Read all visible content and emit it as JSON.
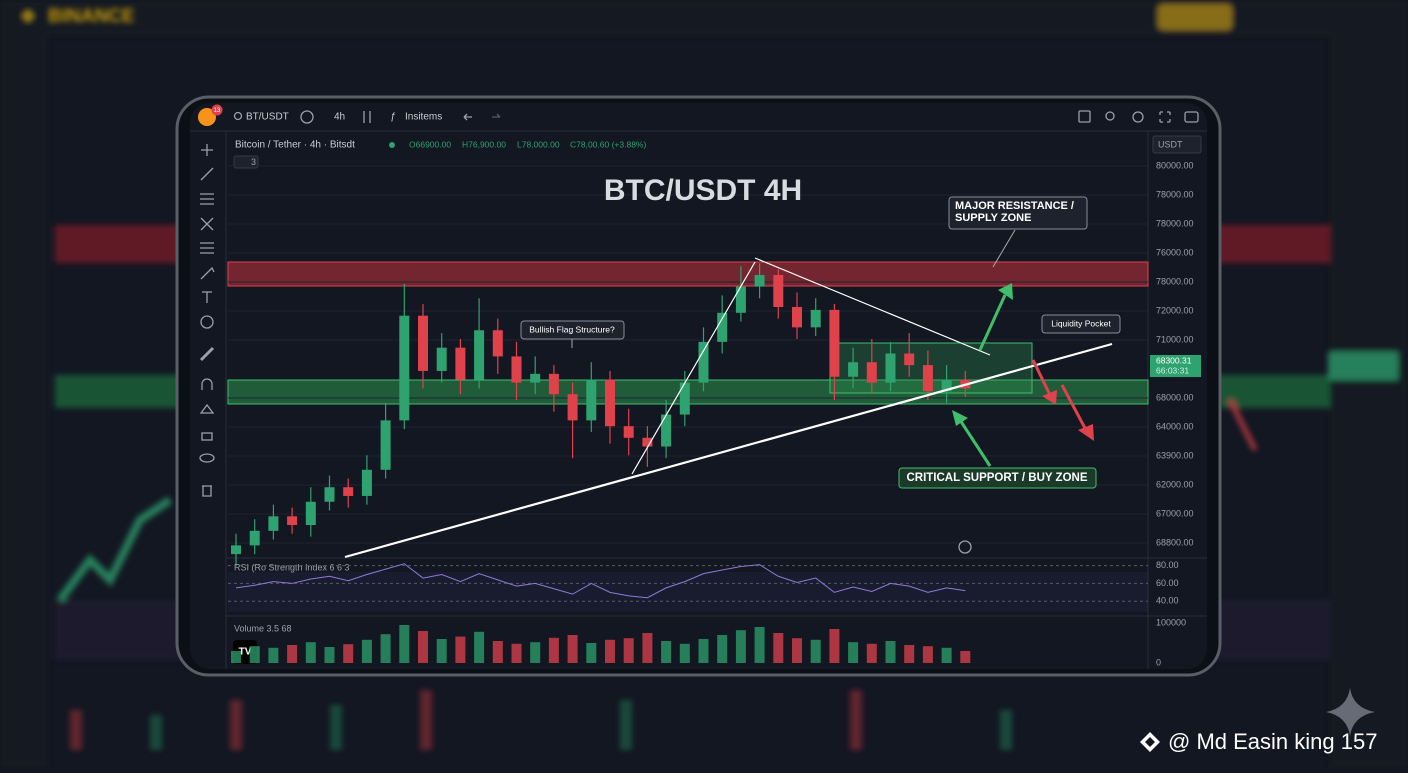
{
  "app": {
    "brand": "BINANCE",
    "symbol": "BT/USDT",
    "badge": "13",
    "interval": "4h",
    "indicators_button": "Insitems",
    "currency": "USDT",
    "legend": "Bitcoin / Tether · 4h · Bitsdt",
    "ohlc": [
      "O66900.00",
      "H76,900.00",
      "L78,000.00",
      "C78,00.60 (+3.88%)"
    ],
    "indicator_count": "3",
    "price_axis_labels": [
      "80000.00",
      "78000.00",
      "78000.00",
      "76000.00",
      "78000.00",
      "72000.00",
      "71000.00",
      "68000.00",
      "64000.00",
      "63900.00",
      "62000.00",
      "67000.00",
      "68800.00"
    ],
    "price_tag": [
      "68300.31",
      "66:03:31"
    ],
    "tv_logo": "TV",
    "watermark": "@ Md Easin king 157"
  },
  "chart_data": {
    "type": "candlestick",
    "title": "BTC/USDT 4H",
    "annotations": [
      "MAJOR RESISTANCE / SUPPLY ZONE",
      "Bullish Flag Structure?",
      "Liquidity Pocket",
      "CRITICAL SUPPORT / BUY ZONE"
    ],
    "ylim": [
      66500,
      80500
    ],
    "up_color": "#2ea36f",
    "down_color": "#e0424c",
    "open": [
      66600,
      66900,
      67400,
      67900,
      67600,
      68400,
      68900,
      68600,
      69500,
      71200,
      74800,
      72900,
      73700,
      72600,
      74300,
      73400,
      72500,
      72800,
      72100,
      71200,
      72600,
      71000,
      70600,
      70300,
      71400,
      72500,
      73900,
      74900,
      75800,
      76200,
      75100,
      74400,
      75000,
      72700,
      73200,
      72500,
      73500,
      73100,
      72200,
      72600
    ],
    "high": [
      67300,
      67800,
      68300,
      68200,
      68900,
      69300,
      69200,
      70000,
      71800,
      75900,
      75200,
      74200,
      74000,
      75400,
      74700,
      73900,
      73400,
      73100,
      72500,
      73200,
      72900,
      71600,
      71000,
      71900,
      72900,
      74400,
      75500,
      76500,
      76600,
      76400,
      75600,
      75400,
      75200,
      73700,
      74000,
      73900,
      74200,
      73600,
      73100,
      72900
    ],
    "low": [
      66200,
      66600,
      67100,
      67300,
      67200,
      68100,
      68200,
      68300,
      69200,
      70900,
      72300,
      72500,
      72100,
      72300,
      72800,
      71900,
      72100,
      71500,
      69900,
      70800,
      70400,
      70000,
      69600,
      69900,
      71000,
      72200,
      73500,
      74600,
      75400,
      74700,
      74000,
      74100,
      71900,
      72300,
      72100,
      72200,
      72700,
      71900,
      71800,
      72000
    ],
    "close": [
      66900,
      67400,
      67900,
      67600,
      68400,
      68900,
      68600,
      69500,
      71200,
      74800,
      72900,
      73700,
      72600,
      74300,
      73400,
      72500,
      72800,
      72100,
      71200,
      72600,
      71000,
      70600,
      70300,
      71400,
      72500,
      73900,
      74900,
      75800,
      76200,
      75100,
      74400,
      75000,
      72700,
      73200,
      72500,
      73500,
      73100,
      72200,
      72600,
      72300
    ],
    "rsi": {
      "label": "RSI (Ro Strength Index 6 6 3",
      "ylim": [
        28,
        84
      ],
      "yticks": [
        {
          "value": 80,
          "label": "80.00"
        },
        {
          "value": 60,
          "label": "60.00"
        },
        {
          "value": 40,
          "label": "40.00"
        }
      ],
      "color": "#8c7bd6",
      "values": [
        55,
        58,
        62,
        60,
        65,
        68,
        63,
        70,
        76,
        82,
        66,
        70,
        62,
        71,
        64,
        57,
        60,
        54,
        48,
        60,
        50,
        46,
        44,
        55,
        62,
        71,
        75,
        79,
        81,
        68,
        61,
        66,
        50,
        56,
        51,
        60,
        57,
        50,
        55,
        52
      ]
    },
    "volume": {
      "label": "Volume 3.5 68",
      "ylim": [
        0,
        100000
      ],
      "yticks": [
        100000,
        0
      ],
      "values": [
        30000,
        42000,
        38000,
        45000,
        52000,
        40000,
        47000,
        58000,
        72000,
        95000,
        80000,
        60000,
        66000,
        78000,
        55000,
        48000,
        52000,
        63000,
        70000,
        50000,
        58000,
        62000,
        75000,
        55000,
        48000,
        60000,
        70000,
        82000,
        90000,
        75000,
        62000,
        58000,
        85000,
        52000,
        48000,
        55000,
        45000,
        42000,
        38000,
        30000
      ]
    }
  }
}
